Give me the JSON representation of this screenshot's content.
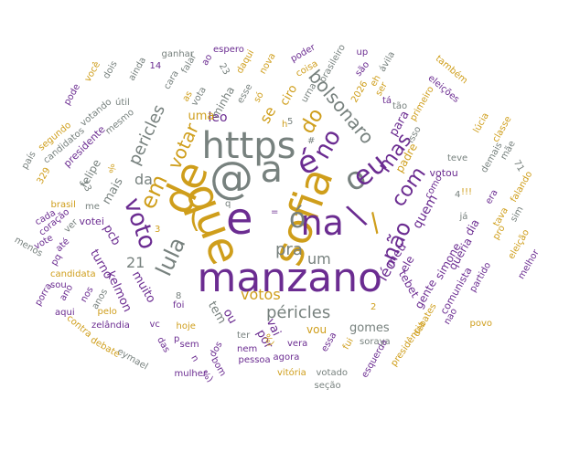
{
  "colors": {
    "purple": "#6b2c91",
    "gold": "#cf9e1b",
    "gray": "#77817e"
  },
  "words": [
    {
      "text": "manzano",
      "color": "purple",
      "weight": 10
    },
    {
      "text": "sofia",
      "color": "gold",
      "weight": 9
    },
    {
      "text": "https",
      "color": "gray",
      "weight": 9
    },
    {
      "text": "que",
      "color": "gold",
      "weight": 9
    },
    {
      "text": "de",
      "color": "gold",
      "weight": 9
    },
    {
      "text": "@",
      "color": "gray",
      "weight": 9
    },
    {
      "text": "e",
      "color": "purple",
      "weight": 9
    },
    {
      "text": "a",
      "color": "gray",
      "weight": 8
    },
    {
      "text": "na",
      "color": "purple",
      "weight": 8
    },
    {
      "text": "é",
      "color": "purple",
      "weight": 7
    },
    {
      "text": "(",
      "color": "gold",
      "weight": 7
    },
    {
      "text": "\\",
      "color": "purple",
      "weight": 7
    },
    {
      "text": "o",
      "color": "gray",
      "weight": 7
    },
    {
      "text": "eu",
      "color": "purple",
      "weight": 6
    },
    {
      "text": "ó",
      "color": "gray",
      "weight": 6
    },
    {
      "text": "/",
      "color": "gold",
      "weight": 6
    },
    {
      "text": "no",
      "color": "purple",
      "weight": 6
    },
    {
      "text": "voto",
      "color": "purple",
      "weight": 5
    },
    {
      "text": "lula",
      "color": "gray",
      "weight": 5
    },
    {
      "text": "do",
      "color": "gold",
      "weight": 5
    },
    {
      "text": "em",
      "color": "gold",
      "weight": 5
    },
    {
      "text": "não",
      "color": "purple",
      "weight": 5
    },
    {
      "text": "com",
      "color": "purple",
      "weight": 5
    },
    {
      "text": "mas",
      "color": "purple",
      "weight": 5
    },
    {
      "text": "bolsonaro",
      "color": "gray",
      "weight": 5
    },
    {
      "text": "votar",
      "color": "gold",
      "weight": 5
    },
    {
      "text": "péricles",
      "color": "gray",
      "weight": 4
    },
    {
      "text": "pericles",
      "color": "gray",
      "weight": 4
    },
    {
      "text": "votos",
      "color": "gold",
      "weight": 4
    },
    {
      "text": "pra",
      "color": "gray",
      "weight": 4
    },
    {
      "text": "um",
      "color": "gray",
      "weight": 4
    },
    {
      "text": "léo",
      "color": "purple",
      "weight": 4
    },
    {
      "text": "leo",
      "color": "purple",
      "weight": 4
    },
    {
      "text": "se",
      "color": "gold",
      "weight": 4
    },
    {
      "text": "da",
      "color": "gray",
      "weight": 4
    },
    {
      "text": "21",
      "color": "gray",
      "weight": 4
    },
    {
      "text": "mais",
      "color": "gray",
      "weight": 3
    },
    {
      "text": "pcb",
      "color": "purple",
      "weight": 3
    },
    {
      "text": "muito",
      "color": "purple",
      "weight": 3
    },
    {
      "text": "uma",
      "color": "gold",
      "weight": 3
    },
    {
      "text": "ciro",
      "color": "gold",
      "weight": 3
    },
    {
      "text": "quem",
      "color": "purple",
      "weight": 3
    },
    {
      "text": "para",
      "color": "purple",
      "weight": 3
    },
    {
      "text": "meu",
      "color": "purple",
      "weight": 3
    },
    {
      "text": "ele",
      "color": "purple",
      "weight": 3
    },
    {
      "text": "tebet",
      "color": "purple",
      "weight": 3
    },
    {
      "text": "kelmon",
      "color": "purple",
      "weight": 3
    },
    {
      "text": "gomes",
      "color": "gray",
      "weight": 3
    },
    {
      "text": "tem",
      "color": "gray",
      "weight": 3
    },
    {
      "text": "ou",
      "color": "purple",
      "weight": 3
    },
    {
      "text": "vai",
      "color": "purple",
      "weight": 3
    },
    {
      "text": "por",
      "color": "purple",
      "weight": 3
    },
    {
      "text": "vou",
      "color": "gold",
      "weight": 3
    },
    {
      "text": "turno",
      "color": "purple",
      "weight": 3
    },
    {
      "text": "padre",
      "color": "gold",
      "weight": 3
    },
    {
      "text": "simone",
      "color": "purple",
      "weight": 3
    },
    {
      "text": "gente",
      "color": "purple",
      "weight": 3
    },
    {
      "text": "queria",
      "color": "purple",
      "weight": 3
    },
    {
      "text": "dia",
      "color": "purple",
      "weight": 3
    },
    {
      "text": "minha",
      "color": "gray",
      "weight": 3
    },
    {
      "text": "felipe",
      "color": "gray",
      "weight": 3
    },
    {
      "text": "votou",
      "color": "purple",
      "weight": 2
    },
    {
      "text": "votei",
      "color": "purple",
      "weight": 2
    },
    {
      "text": "comunista",
      "color": "purple",
      "weight": 2
    },
    {
      "text": "partido",
      "color": "purple",
      "weight": 2
    },
    {
      "text": "presidente",
      "color": "purple",
      "weight": 2
    },
    {
      "text": "candidatos",
      "color": "gray",
      "weight": 2
    },
    {
      "text": "candidata",
      "color": "gold",
      "weight": 2
    },
    {
      "text": "brasil",
      "color": "gold",
      "weight": 2
    },
    {
      "text": "aqui",
      "color": "purple",
      "weight": 2
    },
    {
      "text": "me",
      "color": "gray",
      "weight": 2
    },
    {
      "text": "mesmo",
      "color": "gray",
      "weight": 2
    },
    {
      "text": "segundo",
      "color": "gold",
      "weight": 2
    },
    {
      "text": "votando",
      "color": "gray",
      "weight": 2
    },
    {
      "text": "pode",
      "color": "purple",
      "weight": 2
    },
    {
      "text": "você",
      "color": "gold",
      "weight": 2
    },
    {
      "text": "dois",
      "color": "gray",
      "weight": 2
    },
    {
      "text": "ainda",
      "color": "gray",
      "weight": 2
    },
    {
      "text": "útil",
      "color": "gray",
      "weight": 2
    },
    {
      "text": "14",
      "color": "purple",
      "weight": 2
    },
    {
      "text": "as",
      "color": "gold",
      "weight": 2
    },
    {
      "text": "cara",
      "color": "gray",
      "weight": 2
    },
    {
      "text": "falar",
      "color": "gray",
      "weight": 2
    },
    {
      "text": "ganhar",
      "color": "gray",
      "weight": 2
    },
    {
      "text": "espero",
      "color": "purple",
      "weight": 2
    },
    {
      "text": "ao",
      "color": "purple",
      "weight": 2
    },
    {
      "text": "23",
      "color": "gray",
      "weight": 2
    },
    {
      "text": "vota",
      "color": "gray",
      "weight": 2
    },
    {
      "text": "esse",
      "color": "gray",
      "weight": 2
    },
    {
      "text": "daqui",
      "color": "gold",
      "weight": 2
    },
    {
      "text": "nova",
      "color": "gold",
      "weight": 2
    },
    {
      "text": "só",
      "color": "gold",
      "weight": 2
    },
    {
      "text": "poder",
      "color": "purple",
      "weight": 2
    },
    {
      "text": "coisa",
      "color": "gold",
      "weight": 2
    },
    {
      "text": "urna",
      "color": "gray",
      "weight": 2
    },
    {
      "text": "brasileiro",
      "color": "gray",
      "weight": 2
    },
    {
      "text": "up",
      "color": "purple",
      "weight": 2
    },
    {
      "text": "são",
      "color": "purple",
      "weight": 2
    },
    {
      "text": "ávila",
      "color": "gray",
      "weight": 2
    },
    {
      "text": "eh",
      "color": "gold",
      "weight": 2
    },
    {
      "text": "ser",
      "color": "gold",
      "weight": 2
    },
    {
      "text": "2026",
      "color": "gold",
      "weight": 2
    },
    {
      "text": "tá",
      "color": "purple",
      "weight": 2
    },
    {
      "text": "tão",
      "color": "gray",
      "weight": 2
    },
    {
      "text": "também",
      "color": "gold",
      "weight": 2
    },
    {
      "text": "eleições",
      "color": "purple",
      "weight": 2
    },
    {
      "text": "primeiro",
      "color": "gold",
      "weight": 2
    },
    {
      "text": "lúcia",
      "color": "gold",
      "weight": 2
    },
    {
      "text": "classe",
      "color": "gold",
      "weight": 2
    },
    {
      "text": "mãe",
      "color": "gray",
      "weight": 2
    },
    {
      "text": "demais",
      "color": "gray",
      "weight": 2
    },
    {
      "text": "teve",
      "color": "gray",
      "weight": 2
    },
    {
      "text": "isso",
      "color": "gray",
      "weight": 2
    },
    {
      "text": "como",
      "color": "purple",
      "weight": 2
    },
    {
      "text": "era",
      "color": "purple",
      "weight": 2
    },
    {
      "text": "falando",
      "color": "gold",
      "weight": 2
    },
    {
      "text": "tava",
      "color": "gold",
      "weight": 2
    },
    {
      "text": "pro",
      "color": "gold",
      "weight": 2
    },
    {
      "text": "sim",
      "color": "gray",
      "weight": 2
    },
    {
      "text": "eleição",
      "color": "gold",
      "weight": 2
    },
    {
      "text": "melhor",
      "color": "purple",
      "weight": 2
    },
    {
      "text": "já",
      "color": "gray",
      "weight": 2
    },
    {
      "text": "povo",
      "color": "gold",
      "weight": 2
    },
    {
      "text": "nao",
      "color": "purple",
      "weight": 2
    },
    {
      "text": "debates",
      "color": "gold",
      "weight": 2
    },
    {
      "text": "presidência",
      "color": "gold",
      "weight": 2
    },
    {
      "text": "esquerda",
      "color": "purple",
      "weight": 2
    },
    {
      "text": "soraya",
      "color": "gray",
      "weight": 2
    },
    {
      "text": "votado",
      "color": "gray",
      "weight": 2
    },
    {
      "text": "seção",
      "color": "gray",
      "weight": 2
    },
    {
      "text": "vitória",
      "color": "gold",
      "weight": 2
    },
    {
      "text": "mulher",
      "color": "purple",
      "weight": 2
    },
    {
      "text": "pessoa",
      "color": "purple",
      "weight": 2
    },
    {
      "text": "agora",
      "color": "purple",
      "weight": 2
    },
    {
      "text": "vera",
      "color": "purple",
      "weight": 2
    },
    {
      "text": "nem",
      "color": "purple",
      "weight": 2
    },
    {
      "text": "fui",
      "color": "gold",
      "weight": 2
    },
    {
      "text": "ter",
      "color": "gray",
      "weight": 2
    },
    {
      "text": "essa",
      "color": "purple",
      "weight": 2
    },
    {
      "text": "dos",
      "color": "purple",
      "weight": 2
    },
    {
      "text": "bom",
      "color": "purple",
      "weight": 2
    },
    {
      "text": "sem",
      "color": "purple",
      "weight": 2
    },
    {
      "text": "hoje",
      "color": "gold",
      "weight": 2
    },
    {
      "text": "foi",
      "color": "purple",
      "weight": 2
    },
    {
      "text": "vc",
      "color": "purple",
      "weight": 2
    },
    {
      "text": "das",
      "color": "purple",
      "weight": 2
    },
    {
      "text": "eymael",
      "color": "gray",
      "weight": 2
    },
    {
      "text": "debate",
      "color": "gold",
      "weight": 2
    },
    {
      "text": "zelândia",
      "color": "purple",
      "weight": 2
    },
    {
      "text": "pelo",
      "color": "gold",
      "weight": 2
    },
    {
      "text": "contra",
      "color": "gold",
      "weight": 2
    },
    {
      "text": "nos",
      "color": "purple",
      "weight": 2
    },
    {
      "text": "anos",
      "color": "gray",
      "weight": 2
    },
    {
      "text": "sou",
      "color": "purple",
      "weight": 2
    },
    {
      "text": "ano",
      "color": "purple",
      "weight": 2
    },
    {
      "text": "porra",
      "color": "purple",
      "weight": 2
    },
    {
      "text": "pq",
      "color": "purple",
      "weight": 2
    },
    {
      "text": "menos",
      "color": "gray",
      "weight": 2
    },
    {
      "text": "cada",
      "color": "purple",
      "weight": 2
    },
    {
      "text": "vote",
      "color": "purple",
      "weight": 2
    },
    {
      "text": "até",
      "color": "purple",
      "weight": 2
    },
    {
      "text": "coração",
      "color": "purple",
      "weight": 2
    },
    {
      "text": "ver",
      "color": "gray",
      "weight": 2
    },
    {
      "text": "329",
      "color": "gold",
      "weight": 2
    },
    {
      "text": "país",
      "color": "gray",
      "weight": 2
    },
    {
      "text": "13",
      "color": "gray",
      "weight": 2
    },
    {
      "text": "%",
      "color": "gold",
      "weight": 2
    },
    {
      "text": "#",
      "color": "gray",
      "weight": 2
    },
    {
      "text": "!!!",
      "color": "gold",
      "weight": 2
    },
    {
      "text": "71",
      "color": "gray",
      "weight": 2
    },
    {
      "text": "4",
      "color": "gray",
      "weight": 2
    },
    {
      "text": "5",
      "color": "gray",
      "weight": 2
    },
    {
      "text": "2",
      "color": "gold",
      "weight": 2
    },
    {
      "text": "8",
      "color": "gray",
      "weight": 2
    },
    {
      "text": "3",
      "color": "gold",
      "weight": 2
    },
    {
      "text": "p",
      "color": "purple",
      "weight": 2
    },
    {
      "text": "n",
      "color": "purple",
      "weight": 2
    },
    {
      "text": "h",
      "color": "gold",
      "weight": 2
    },
    {
      "text": "q",
      "color": "gray",
      "weight": 2
    },
    {
      "text": "=",
      "color": "purple",
      "weight": 2
    },
    {
      "text": "%)",
      "color": "gold",
      "weight": 2
    },
    {
      "text": "%)",
      "color": "purple",
      "weight": 2
    }
  ]
}
